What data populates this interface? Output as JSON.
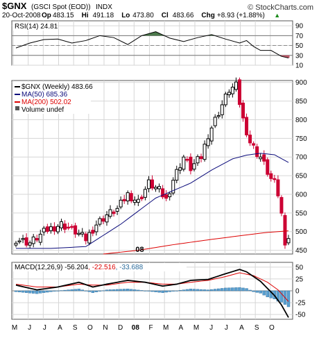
{
  "header": {
    "symbol": "$GNX",
    "name": "(GSCI Spot (EOD))",
    "exchange": "INDX",
    "watermark": "© StockCharts.com",
    "date": "20-Oct-2008",
    "quote": [
      {
        "label": "Op",
        "value": "483.15"
      },
      {
        "label": "Hi",
        "value": "491.18"
      },
      {
        "label": "Lo",
        "value": "473.80"
      },
      {
        "label": "Cl",
        "value": "483.66"
      },
      {
        "label": "Chg",
        "value": "+8.93 (+1.88%)",
        "arrow": "▲"
      }
    ]
  },
  "colors": {
    "up": "#000000",
    "down": "#cc0033",
    "ma50": "#0a0a7a",
    "ma200": "#dd0000",
    "rsi_overbought_fill": "#4c7a4c",
    "rsi_oversold_fill": "#c05a6a",
    "macd_hist": "#5aa0d0",
    "macd_signal": "#dd0000",
    "grid": "#d6d6d6",
    "chg_arrow": "#1a8a1a"
  },
  "chart_data": [
    {
      "panel": "rsi",
      "type": "line",
      "title": "RSI(14) 24.81",
      "ylim": [
        10,
        100
      ],
      "yticks": [
        10,
        30,
        50,
        70,
        90
      ],
      "guides": [
        30,
        70
      ],
      "x": [
        0,
        4,
        8,
        12,
        16,
        20,
        24,
        28,
        32,
        36,
        40,
        44,
        48,
        52,
        56,
        60,
        64,
        66,
        68,
        70,
        73,
        76,
        78
      ],
      "values": [
        45,
        55,
        62,
        63,
        55,
        60,
        70,
        66,
        52,
        70,
        78,
        65,
        58,
        66,
        72,
        63,
        55,
        60,
        48,
        40,
        40,
        28,
        24.81
      ]
    },
    {
      "panel": "price",
      "type": "candlestick",
      "series_labels": [
        "$GNX (Weekly) 483.66",
        "MA(50) 685.36",
        "MA(200) 502.02",
        "Volume undef"
      ],
      "ylim": [
        440,
        905
      ],
      "yticks": [
        450,
        500,
        550,
        600,
        650,
        700,
        750,
        800,
        850,
        900
      ],
      "x_labels": [
        "M",
        "J",
        "J",
        "A",
        "S",
        "O",
        "N",
        "D",
        "08",
        "F",
        "M",
        "A",
        "M",
        "J",
        "J",
        "A",
        "S",
        "O"
      ],
      "weeks": 79,
      "ohlc_anchors": [
        {
          "week": 0,
          "close": 480
        },
        {
          "week": 4,
          "close": 470
        },
        {
          "week": 9,
          "close": 505
        },
        {
          "week": 13,
          "close": 520
        },
        {
          "week": 17,
          "close": 500
        },
        {
          "week": 20,
          "close": 480
        },
        {
          "week": 23,
          "close": 520
        },
        {
          "week": 26,
          "close": 545
        },
        {
          "week": 29,
          "close": 560
        },
        {
          "week": 32,
          "close": 600
        },
        {
          "week": 35,
          "close": 580
        },
        {
          "week": 38,
          "close": 630
        },
        {
          "week": 41,
          "close": 610
        },
        {
          "week": 43,
          "close": 585
        },
        {
          "week": 45,
          "close": 640
        },
        {
          "week": 48,
          "close": 700
        },
        {
          "week": 50,
          "close": 670
        },
        {
          "week": 53,
          "close": 700
        },
        {
          "week": 55,
          "close": 760
        },
        {
          "week": 57,
          "close": 800
        },
        {
          "week": 59,
          "close": 840
        },
        {
          "week": 61,
          "close": 880
        },
        {
          "week": 63,
          "close": 890
        },
        {
          "week": 65,
          "close": 800
        },
        {
          "week": 67,
          "close": 740
        },
        {
          "week": 69,
          "close": 710
        },
        {
          "week": 70,
          "close": 700
        },
        {
          "week": 72,
          "close": 660
        },
        {
          "week": 73,
          "close": 640
        },
        {
          "week": 74,
          "close": 630
        },
        {
          "week": 75,
          "close": 600
        },
        {
          "week": 76,
          "close": 545
        },
        {
          "week": 77,
          "close": 475
        },
        {
          "week": 78,
          "close": 483.66
        }
      ],
      "ma50": [
        [
          0,
          455
        ],
        [
          10,
          455
        ],
        [
          20,
          460
        ],
        [
          30,
          520
        ],
        [
          40,
          590
        ],
        [
          50,
          630
        ],
        [
          56,
          665
        ],
        [
          62,
          695
        ],
        [
          66,
          705
        ],
        [
          70,
          710
        ],
        [
          74,
          706
        ],
        [
          78,
          685.36
        ]
      ],
      "ma200": [
        [
          25,
          440
        ],
        [
          35,
          450
        ],
        [
          45,
          465
        ],
        [
          55,
          478
        ],
        [
          65,
          490
        ],
        [
          72,
          498
        ],
        [
          78,
          502.02
        ]
      ]
    },
    {
      "panel": "macd",
      "type": "line",
      "title": "MACD(12,26,9) -56.204, -22.516, -33.688",
      "ylim": [
        -60,
        60
      ],
      "yticks": [
        -50,
        -25,
        0,
        25,
        50
      ],
      "macd": [
        [
          0,
          12
        ],
        [
          6,
          2
        ],
        [
          12,
          8
        ],
        [
          18,
          18
        ],
        [
          22,
          8
        ],
        [
          26,
          14
        ],
        [
          32,
          22
        ],
        [
          37,
          18
        ],
        [
          42,
          10
        ],
        [
          46,
          14
        ],
        [
          50,
          22
        ],
        [
          55,
          24
        ],
        [
          60,
          36
        ],
        [
          64,
          45
        ],
        [
          66,
          40
        ],
        [
          70,
          20
        ],
        [
          74,
          -10
        ],
        [
          76,
          -30
        ],
        [
          78,
          -56.204
        ]
      ],
      "signal": [
        [
          0,
          14
        ],
        [
          6,
          8
        ],
        [
          12,
          8
        ],
        [
          18,
          14
        ],
        [
          22,
          12
        ],
        [
          26,
          12
        ],
        [
          32,
          18
        ],
        [
          37,
          18
        ],
        [
          42,
          14
        ],
        [
          46,
          14
        ],
        [
          50,
          18
        ],
        [
          55,
          22
        ],
        [
          60,
          30
        ],
        [
          64,
          38
        ],
        [
          68,
          32
        ],
        [
          72,
          18
        ],
        [
          75,
          2
        ],
        [
          78,
          -22.516
        ]
      ],
      "histogram_last": -33.688
    }
  ]
}
